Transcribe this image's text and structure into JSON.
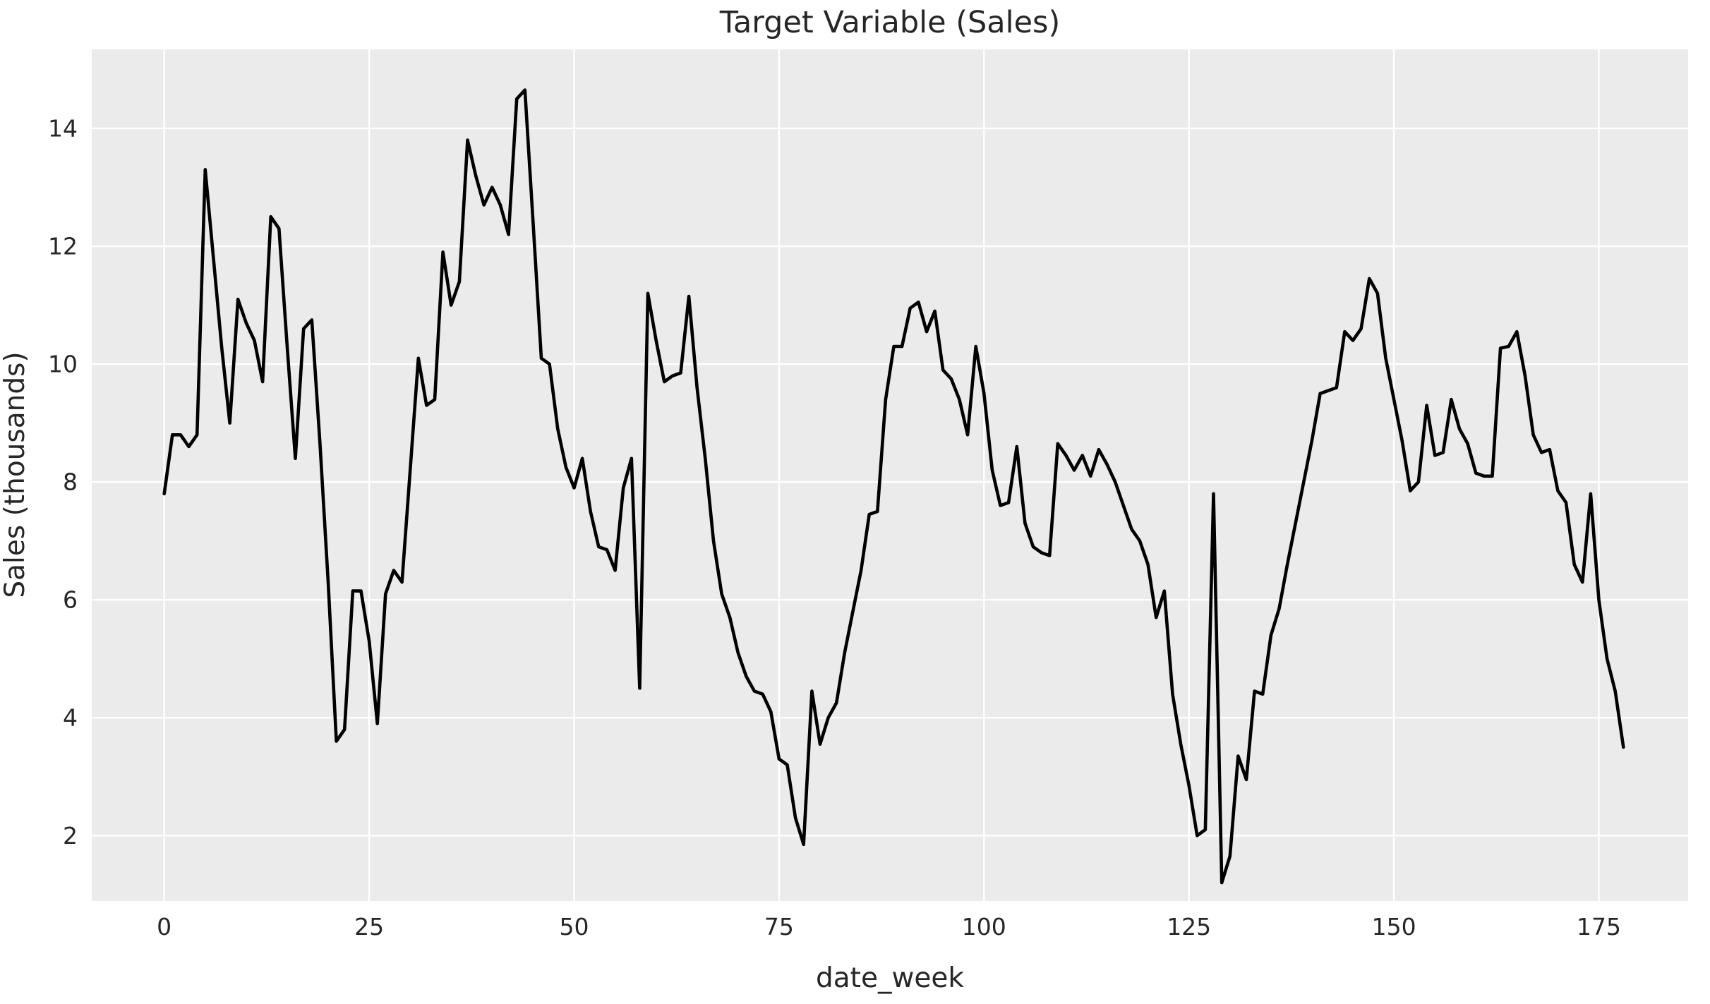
{
  "figure": {
    "title": "Target Variable (Sales)",
    "x_axis_label": "date_week",
    "y_axis_label": "Sales (thousands)"
  },
  "chart_data": {
    "type": "line",
    "title": "Target Variable (Sales)",
    "xlabel": "date_week",
    "ylabel": "Sales (thousands)",
    "grid": true,
    "legend": false,
    "plot_bg_color": "#ebebeb",
    "grid_color": "#ffffff",
    "line_color": "#000000",
    "text_color": "#262626",
    "x_ticks": [
      0,
      25,
      50,
      75,
      100,
      125,
      150,
      175
    ],
    "y_ticks": [
      2,
      4,
      6,
      8,
      10,
      12,
      14
    ],
    "xlim": [
      -8.84,
      185.89
    ],
    "ylim": [
      0.89,
      15.34
    ],
    "x_start": 0,
    "x_step": 1,
    "series": [
      {
        "name": "Sales",
        "values": [
          7.8,
          8.8,
          8.8,
          8.6,
          8.8,
          13.3,
          11.8,
          10.3,
          9.0,
          11.1,
          10.7,
          10.4,
          9.7,
          12.5,
          12.3,
          10.3,
          8.4,
          10.6,
          10.75,
          8.65,
          6.3,
          3.6,
          3.8,
          6.15,
          6.15,
          5.3,
          3.9,
          6.1,
          6.5,
          6.3,
          8.2,
          10.1,
          9.3,
          9.4,
          11.9,
          11.0,
          11.4,
          13.8,
          13.2,
          12.7,
          13.0,
          12.7,
          12.2,
          14.5,
          14.65,
          12.4,
          10.1,
          10.0,
          8.9,
          8.25,
          7.9,
          8.4,
          7.5,
          6.9,
          6.85,
          6.5,
          7.9,
          8.4,
          4.5,
          11.2,
          10.4,
          9.7,
          9.8,
          9.85,
          11.15,
          9.6,
          8.4,
          7.0,
          6.1,
          5.7,
          5.1,
          4.7,
          4.45,
          4.4,
          4.1,
          3.3,
          3.2,
          2.3,
          1.85,
          4.45,
          3.55,
          4.0,
          4.25,
          5.1,
          5.8,
          6.5,
          7.45,
          7.5,
          9.4,
          10.3,
          10.3,
          10.95,
          11.05,
          10.55,
          10.9,
          9.9,
          9.75,
          9.4,
          8.8,
          10.3,
          9.5,
          8.2,
          7.6,
          7.65,
          8.6,
          7.3,
          6.9,
          6.8,
          6.75,
          8.65,
          8.45,
          8.2,
          8.45,
          8.1,
          8.55,
          8.3,
          8.0,
          7.6,
          7.2,
          7.0,
          6.6,
          5.7,
          6.15,
          4.4,
          3.55,
          2.85,
          2.0,
          2.1,
          7.8,
          1.2,
          1.65,
          3.35,
          2.95,
          4.45,
          4.4,
          5.4,
          5.85,
          6.6,
          7.3,
          8.0,
          8.7,
          9.5,
          9.55,
          9.6,
          10.55,
          10.4,
          10.6,
          11.45,
          11.2,
          10.1,
          9.4,
          8.7,
          7.85,
          8.0,
          9.3,
          8.45,
          8.5,
          9.4,
          8.9,
          8.65,
          8.15,
          8.1,
          8.1,
          10.27,
          10.3,
          10.55,
          9.8,
          8.8,
          8.5,
          8.55,
          7.85,
          7.65,
          6.6,
          6.3,
          7.8,
          6.0,
          5.0,
          4.45,
          3.5
        ]
      }
    ]
  }
}
